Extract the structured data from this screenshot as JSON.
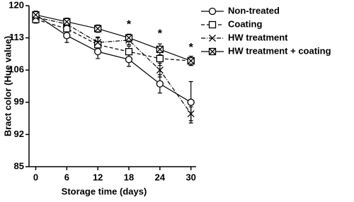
{
  "chart_data": {
    "type": "line",
    "x_label": "Storage time (days)",
    "y_label": "Bract color (Hue value)",
    "x": [
      0,
      6,
      12,
      18,
      24,
      30
    ],
    "xlim": [
      -1.3,
      31
    ],
    "xticks": [
      0,
      6,
      12,
      18,
      24,
      30
    ],
    "ylim": [
      85,
      120
    ],
    "yticks": [
      85,
      92,
      99,
      106,
      113,
      120
    ],
    "series": [
      {
        "name": "Non-treated",
        "color": "#000000",
        "marker": "circle",
        "dash": "solid",
        "values": [
          118,
          113.5,
          110,
          108.3,
          103,
          99
        ],
        "errors": [
          0.8,
          1.5,
          1.5,
          1.5,
          2,
          4.5
        ]
      },
      {
        "name": "Coating",
        "color": "#000000",
        "marker": "square",
        "dash": "dashed",
        "values": [
          117,
          115,
          111.5,
          110,
          108.5,
          108
        ],
        "errors": [
          0.8,
          1.2,
          1.5,
          1.2,
          1.5,
          1
        ]
      },
      {
        "name": "HW treatment",
        "color": "#000000",
        "marker": "x",
        "dash": "dotdash",
        "values": [
          117.5,
          116,
          112,
          112.5,
          106,
          96.5
        ],
        "errors": [
          0.8,
          1,
          1.2,
          1,
          1.5,
          1.5
        ]
      },
      {
        "name": "HW treatment + coating",
        "color": "#000000",
        "marker": "boxx",
        "dash": "solid",
        "values": [
          118,
          116.5,
          115,
          113,
          110.5,
          108
        ],
        "errors": [
          0.8,
          0.8,
          0.8,
          0.8,
          1.2,
          1
        ]
      }
    ],
    "annotations": [
      {
        "x": 18,
        "y": 115.8,
        "text": "*"
      },
      {
        "x": 24,
        "y": 113.8,
        "text": "*"
      },
      {
        "x": 30,
        "y": 110.8,
        "text": "*"
      }
    ]
  }
}
